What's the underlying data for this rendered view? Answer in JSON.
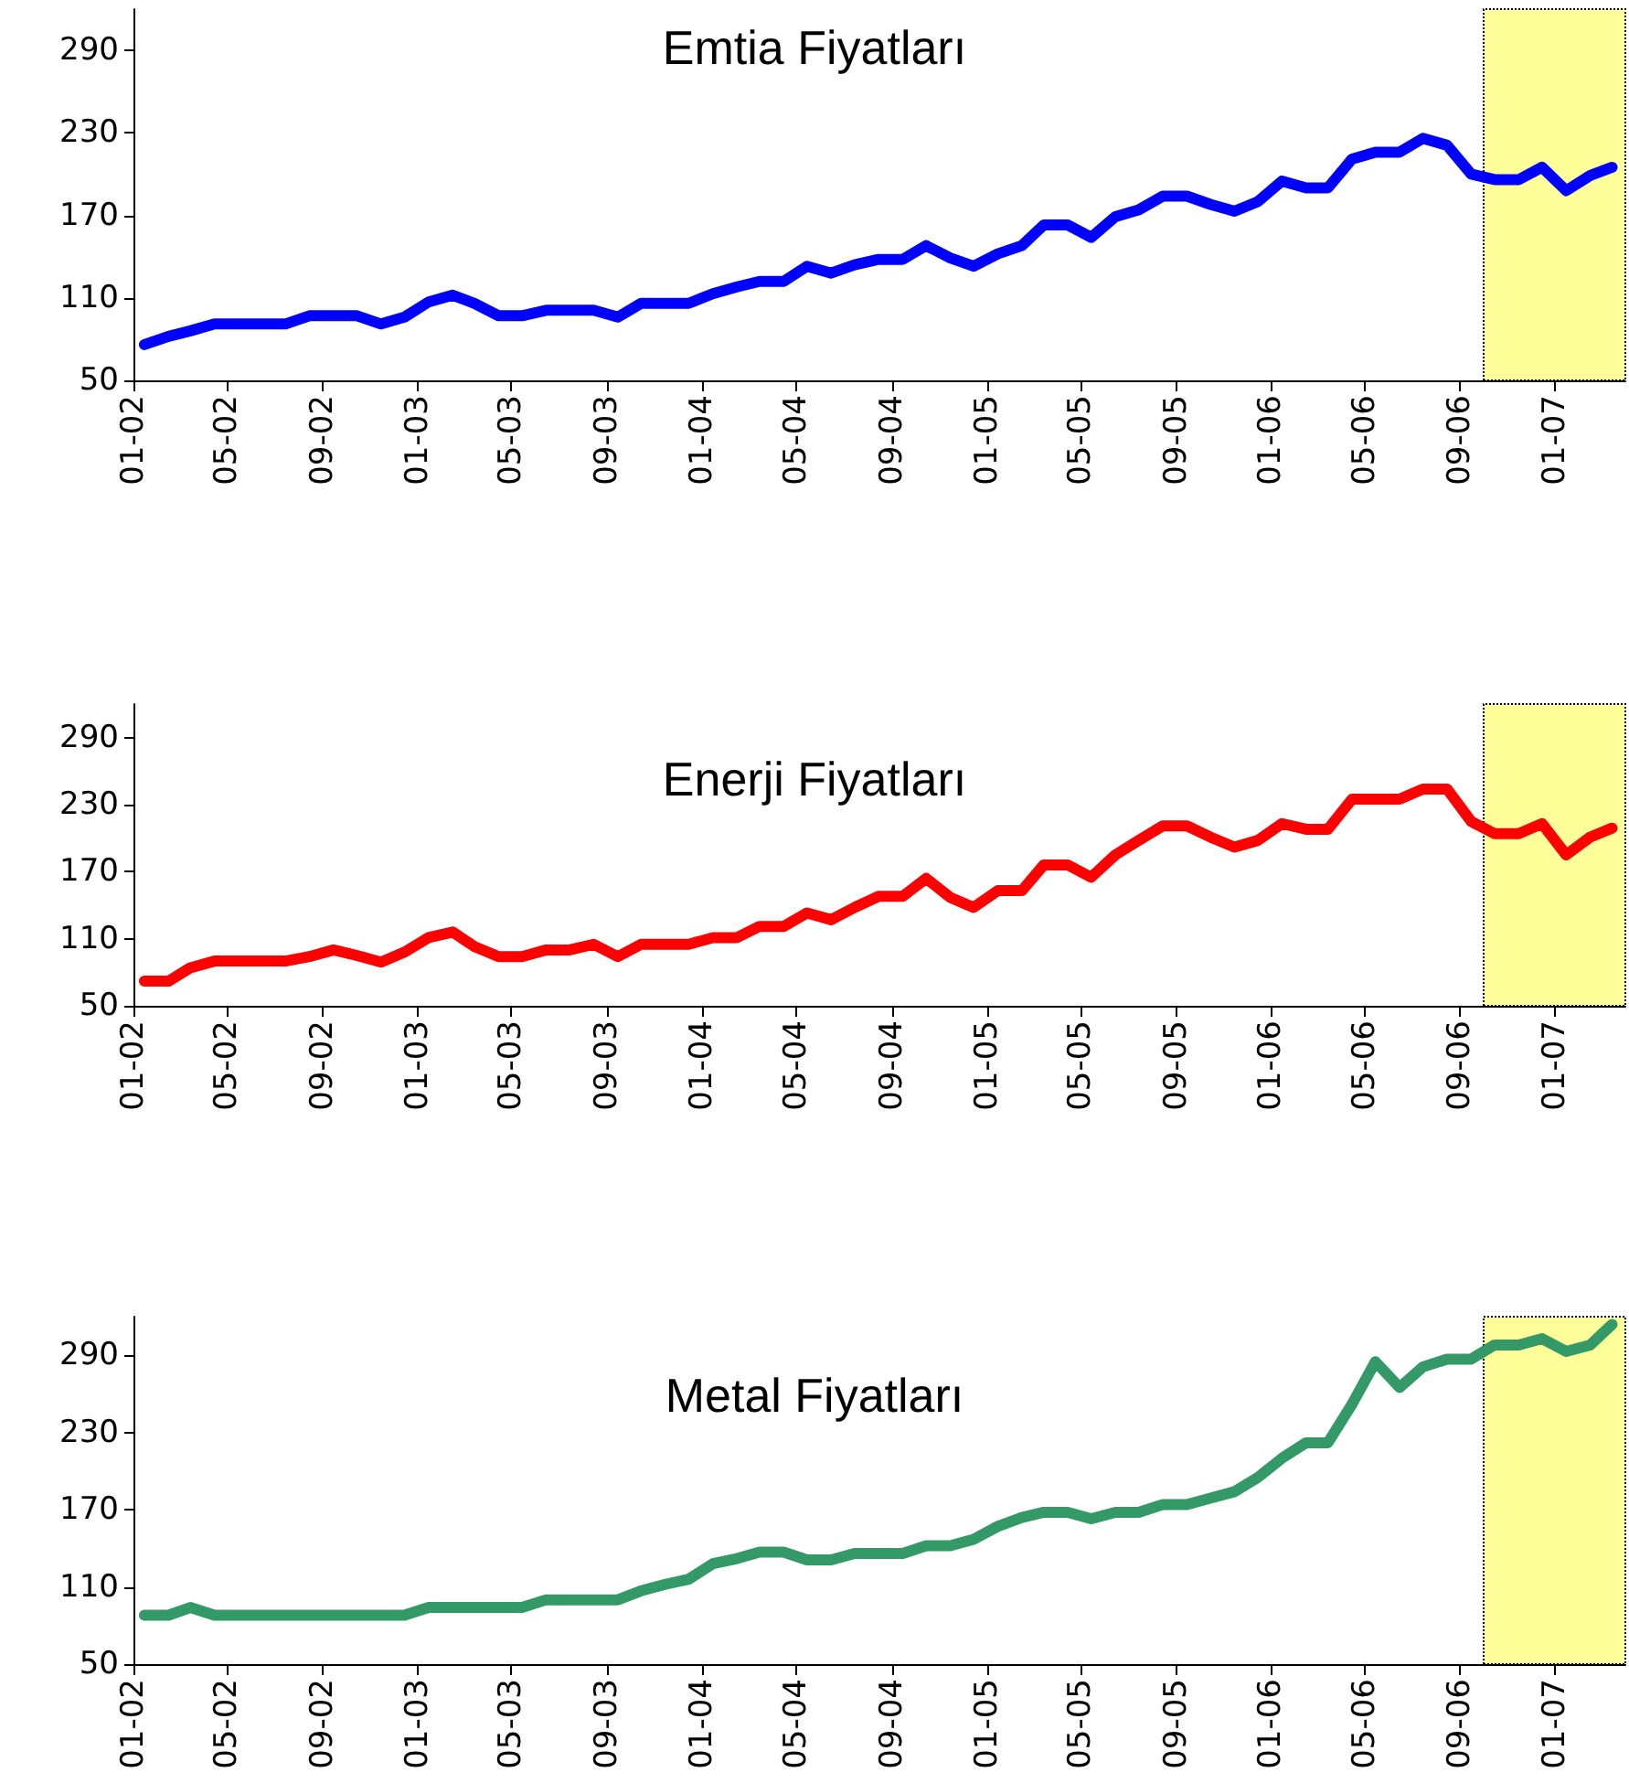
{
  "chart_data": [
    {
      "type": "line",
      "title": "Emtia Fiyatları",
      "color": "#0000ff",
      "line_style": "solid",
      "grid": false,
      "x": [
        "2002-01-15",
        "2002-02-15",
        "2002-03-15",
        "2002-04-15",
        "2002-05-15",
        "2002-06-15",
        "2002-07-15",
        "2002-08-15",
        "2002-09-15",
        "2002-10-15",
        "2002-11-15",
        "2002-12-15",
        "2003-01-15",
        "2003-02-15",
        "2003-03-15",
        "2003-04-15",
        "2003-05-15",
        "2003-06-15",
        "2003-07-15",
        "2003-08-15",
        "2003-09-15",
        "2003-10-15",
        "2003-11-15",
        "2003-12-15",
        "2004-01-15",
        "2004-02-15",
        "2004-03-15",
        "2004-04-15",
        "2004-05-15",
        "2004-06-15",
        "2004-07-15",
        "2004-08-15",
        "2004-09-15",
        "2004-10-15",
        "2004-11-15",
        "2004-12-15",
        "2005-01-15",
        "2005-02-15",
        "2005-03-15",
        "2005-04-15",
        "2005-05-15",
        "2005-06-15",
        "2005-07-15",
        "2005-08-15",
        "2005-09-15",
        "2005-10-15",
        "2005-11-15",
        "2005-12-15",
        "2006-01-15",
        "2006-02-15",
        "2006-03-15",
        "2006-04-15",
        "2006-05-15",
        "2006-06-15",
        "2006-07-15",
        "2006-08-15",
        "2006-09-15",
        "2006-10-15",
        "2006-11-15",
        "2006-12-15",
        "2007-01-15",
        "2007-02-15",
        "2007-03-15"
      ],
      "values": [
        76,
        82,
        86,
        91,
        91,
        91,
        91,
        97,
        97,
        97,
        91,
        96,
        107,
        112,
        106,
        97,
        97,
        101,
        101,
        101,
        96,
        106,
        106,
        106,
        113,
        118,
        122,
        122,
        133,
        128,
        134,
        138,
        138,
        148,
        139,
        133,
        142,
        148,
        163,
        163,
        154,
        169,
        174,
        184,
        184,
        178,
        173,
        180,
        195,
        190,
        190,
        211,
        216,
        216,
        226,
        221,
        200,
        196,
        196,
        205,
        188,
        199,
        205
      ],
      "xlim": [
        "2002-01",
        "2007-04"
      ],
      "xticks": [
        {
          "value": "2002-01",
          "label": "01-02"
        },
        {
          "value": "2002-05",
          "label": "05-02"
        },
        {
          "value": "2002-09",
          "label": "09-02"
        },
        {
          "value": "2003-01",
          "label": "01-03"
        },
        {
          "value": "2003-05",
          "label": "05-03"
        },
        {
          "value": "2003-09",
          "label": "09-03"
        },
        {
          "value": "2004-01",
          "label": "01-04"
        },
        {
          "value": "2004-05",
          "label": "05-04"
        },
        {
          "value": "2004-09",
          "label": "09-04"
        },
        {
          "value": "2005-01",
          "label": "01-05"
        },
        {
          "value": "2005-05",
          "label": "05-05"
        },
        {
          "value": "2005-09",
          "label": "09-05"
        },
        {
          "value": "2006-01",
          "label": "01-06"
        },
        {
          "value": "2006-05",
          "label": "05-06"
        },
        {
          "value": "2006-09",
          "label": "09-06"
        },
        {
          "value": "2007-01",
          "label": "01-07"
        }
      ],
      "ylim": [
        50,
        320
      ],
      "yticks": [
        50,
        110,
        170,
        230,
        290
      ],
      "bands": [
        {
          "axis": "x",
          "from": "2006-10",
          "to": "2007-04",
          "color": "#ffff99"
        }
      ]
    },
    {
      "type": "line",
      "title": "Enerji Fiyatları",
      "color": "#ff0000",
      "line_style": "solid",
      "grid": false,
      "x": [
        "2002-01-15",
        "2002-02-15",
        "2002-03-15",
        "2002-04-15",
        "2002-05-15",
        "2002-06-15",
        "2002-07-15",
        "2002-08-15",
        "2002-09-15",
        "2002-10-15",
        "2002-11-15",
        "2002-12-15",
        "2003-01-15",
        "2003-02-15",
        "2003-03-15",
        "2003-04-15",
        "2003-05-15",
        "2003-06-15",
        "2003-07-15",
        "2003-08-15",
        "2003-09-15",
        "2003-10-15",
        "2003-11-15",
        "2003-12-15",
        "2004-01-15",
        "2004-02-15",
        "2004-03-15",
        "2004-04-15",
        "2004-05-15",
        "2004-06-15",
        "2004-07-15",
        "2004-08-15",
        "2004-09-15",
        "2004-10-15",
        "2004-11-15",
        "2004-12-15",
        "2005-01-15",
        "2005-02-15",
        "2005-03-15",
        "2005-04-15",
        "2005-05-15",
        "2005-06-15",
        "2005-07-15",
        "2005-08-15",
        "2005-09-15",
        "2005-10-15",
        "2005-11-15",
        "2005-12-15",
        "2006-01-15",
        "2006-02-15",
        "2006-03-15",
        "2006-04-15",
        "2006-05-15",
        "2006-06-15",
        "2006-07-15",
        "2006-08-15",
        "2006-09-15",
        "2006-10-15",
        "2006-11-15",
        "2006-12-15",
        "2007-01-15",
        "2007-02-15",
        "2007-03-15"
      ],
      "values": [
        72,
        72,
        84,
        90,
        90,
        90,
        90,
        94,
        100,
        95,
        89,
        98,
        111,
        116,
        103,
        94,
        94,
        100,
        100,
        105,
        94,
        105,
        105,
        105,
        111,
        111,
        121,
        121,
        133,
        127,
        138,
        148,
        148,
        164,
        147,
        138,
        153,
        153,
        176,
        176,
        165,
        185,
        198,
        211,
        211,
        201,
        192,
        198,
        213,
        208,
        208,
        235,
        235,
        235,
        244,
        244,
        215,
        204,
        204,
        213,
        185,
        201,
        209
      ],
      "xlim": [
        "2002-01",
        "2007-04"
      ],
      "xticks": [
        {
          "value": "2002-01",
          "label": "01-02"
        },
        {
          "value": "2002-05",
          "label": "05-02"
        },
        {
          "value": "2002-09",
          "label": "09-02"
        },
        {
          "value": "2003-01",
          "label": "01-03"
        },
        {
          "value": "2003-05",
          "label": "05-03"
        },
        {
          "value": "2003-09",
          "label": "09-03"
        },
        {
          "value": "2004-01",
          "label": "01-04"
        },
        {
          "value": "2004-05",
          "label": "05-04"
        },
        {
          "value": "2004-09",
          "label": "09-04"
        },
        {
          "value": "2005-01",
          "label": "01-05"
        },
        {
          "value": "2005-05",
          "label": "05-05"
        },
        {
          "value": "2005-09",
          "label": "09-05"
        },
        {
          "value": "2006-01",
          "label": "01-06"
        },
        {
          "value": "2006-05",
          "label": "05-06"
        },
        {
          "value": "2006-09",
          "label": "09-06"
        },
        {
          "value": "2007-01",
          "label": "01-07"
        }
      ],
      "ylim": [
        50,
        320
      ],
      "yticks": [
        50,
        110,
        170,
        230,
        290
      ],
      "bands": [
        {
          "axis": "x",
          "from": "2006-10",
          "to": "2007-04",
          "color": "#ffff99"
        }
      ]
    },
    {
      "type": "line",
      "title": "Metal Fiyatları",
      "color": "#339966",
      "line_style": "solid",
      "grid": false,
      "x": [
        "2002-01-15",
        "2002-02-15",
        "2002-03-15",
        "2002-04-15",
        "2002-05-15",
        "2002-06-15",
        "2002-07-15",
        "2002-08-15",
        "2002-09-15",
        "2002-10-15",
        "2002-11-15",
        "2002-12-15",
        "2003-01-15",
        "2003-02-15",
        "2003-03-15",
        "2003-04-15",
        "2003-05-15",
        "2003-06-15",
        "2003-07-15",
        "2003-08-15",
        "2003-09-15",
        "2003-10-15",
        "2003-11-15",
        "2003-12-15",
        "2004-01-15",
        "2004-02-15",
        "2004-03-15",
        "2004-04-15",
        "2004-05-15",
        "2004-06-15",
        "2004-07-15",
        "2004-08-15",
        "2004-09-15",
        "2004-10-15",
        "2004-11-15",
        "2004-12-15",
        "2005-01-15",
        "2005-02-15",
        "2005-03-15",
        "2005-04-15",
        "2005-05-15",
        "2005-06-15",
        "2005-07-15",
        "2005-08-15",
        "2005-09-15",
        "2005-10-15",
        "2005-11-15",
        "2005-12-15",
        "2006-01-15",
        "2006-02-15",
        "2006-03-15",
        "2006-04-15",
        "2006-05-15",
        "2006-06-15",
        "2006-07-15",
        "2006-08-15",
        "2006-09-15",
        "2006-10-15",
        "2006-11-15",
        "2006-12-15",
        "2007-01-15",
        "2007-02-15",
        "2007-03-15"
      ],
      "values": [
        88,
        88,
        94,
        88,
        88,
        88,
        88,
        88,
        88,
        88,
        88,
        88,
        94,
        94,
        94,
        94,
        94,
        100,
        100,
        100,
        100,
        107,
        112,
        116,
        128,
        132,
        137,
        137,
        131,
        131,
        136,
        136,
        136,
        142,
        142,
        147,
        157,
        164,
        168,
        168,
        163,
        168,
        168,
        174,
        174,
        179,
        184,
        195,
        210,
        222,
        222,
        252,
        285,
        265,
        281,
        287,
        287,
        298,
        298,
        303,
        293,
        298,
        314
      ],
      "xlim": [
        "2002-01",
        "2007-04"
      ],
      "xticks": [
        {
          "value": "2002-01",
          "label": "01-02"
        },
        {
          "value": "2002-05",
          "label": "05-02"
        },
        {
          "value": "2002-09",
          "label": "09-02"
        },
        {
          "value": "2003-01",
          "label": "01-03"
        },
        {
          "value": "2003-05",
          "label": "05-03"
        },
        {
          "value": "2003-09",
          "label": "09-03"
        },
        {
          "value": "2004-01",
          "label": "01-04"
        },
        {
          "value": "2004-05",
          "label": "05-04"
        },
        {
          "value": "2004-09",
          "label": "09-04"
        },
        {
          "value": "2005-01",
          "label": "01-05"
        },
        {
          "value": "2005-05",
          "label": "05-05"
        },
        {
          "value": "2005-09",
          "label": "09-05"
        },
        {
          "value": "2006-01",
          "label": "01-06"
        },
        {
          "value": "2006-05",
          "label": "05-06"
        },
        {
          "value": "2006-09",
          "label": "09-06"
        },
        {
          "value": "2007-01",
          "label": "01-07"
        }
      ],
      "ylim": [
        50,
        320
      ],
      "yticks": [
        50,
        110,
        170,
        230,
        290
      ],
      "bands": [
        {
          "axis": "x",
          "from": "2006-10",
          "to": "2007-04",
          "color": "#ffff99"
        }
      ]
    }
  ]
}
